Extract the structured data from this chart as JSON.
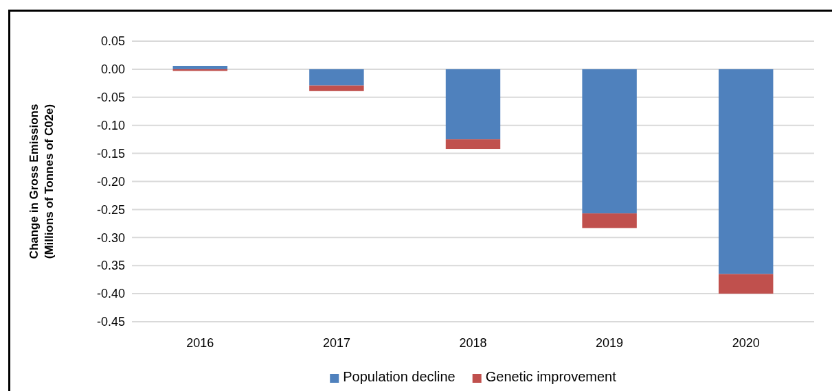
{
  "chart_data": {
    "type": "bar",
    "stacked": true,
    "ylabel": "Change in Gross Emissions\n(Millions of Tonnes of C02e)",
    "categories": [
      "2016",
      "2017",
      "2018",
      "2019",
      "2020"
    ],
    "series": [
      {
        "name": "Population decline",
        "color": "#4f81bd",
        "values": [
          0.006,
          -0.029,
          -0.125,
          -0.257,
          -0.365
        ]
      },
      {
        "name": "Genetic improvement",
        "color": "#c0504d",
        "values": [
          -0.003,
          -0.01,
          -0.017,
          -0.026,
          -0.035
        ]
      }
    ],
    "ylim": [
      -0.45,
      0.05
    ],
    "yticks": [
      {
        "value": 0.05,
        "label": "0.05"
      },
      {
        "value": 0,
        "label": "0.00"
      },
      {
        "value": -0.05,
        "label": "-0.05"
      },
      {
        "value": -0.1,
        "label": "-0.10"
      },
      {
        "value": -0.15,
        "label": "-0.15"
      },
      {
        "value": -0.2,
        "label": "-0.20"
      },
      {
        "value": -0.25,
        "label": "-0.25"
      },
      {
        "value": -0.3,
        "label": "-0.30"
      },
      {
        "value": -0.35,
        "label": "-0.35"
      },
      {
        "value": -0.4,
        "label": "-0.40"
      },
      {
        "value": -0.45,
        "label": "-0.45"
      }
    ],
    "grid": "y",
    "legend": "bottom"
  }
}
